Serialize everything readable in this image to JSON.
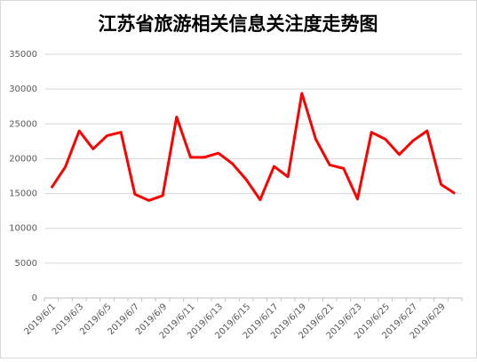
{
  "chart_data": {
    "type": "line",
    "title": "江苏省旅游相关信息关注度走势图",
    "categories": [
      "2019/6/1",
      null,
      "2019/6/3",
      null,
      "2019/6/5",
      null,
      "2019/6/7",
      null,
      "2019/6/9",
      null,
      "2019/6/11",
      null,
      "2019/6/13",
      null,
      "2019/6/15",
      null,
      "2019/6/17",
      null,
      "2019/6/19",
      null,
      "2019/6/21",
      null,
      "2019/6/23",
      null,
      "2019/6/25",
      null,
      "2019/6/27",
      null,
      "2019/6/29",
      null
    ],
    "values": [
      15800,
      18800,
      24000,
      21400,
      23300,
      23800,
      14900,
      14000,
      14700,
      26000,
      20200,
      20200,
      20800,
      19300,
      17000,
      14100,
      18900,
      17400,
      29400,
      22800,
      19100,
      18600,
      14200,
      23800,
      22800,
      20600,
      22600,
      24000,
      16300,
      15000
    ],
    "color": "#ff0000",
    "ylim": [
      0,
      35000
    ],
    "yticks": [
      0,
      5000,
      10000,
      15000,
      20000,
      25000,
      30000,
      35000
    ],
    "grid": true
  }
}
